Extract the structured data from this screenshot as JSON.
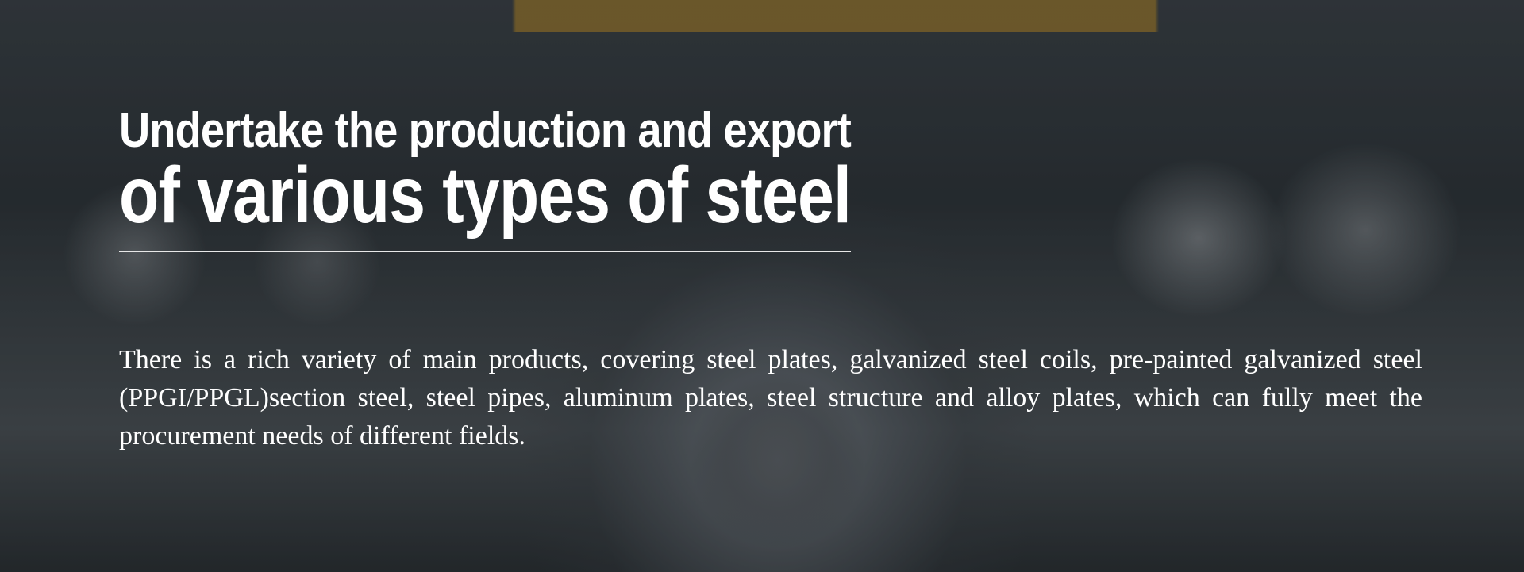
{
  "banner": {
    "title_line1": "Undertake the production and export",
    "title_line2": "of various types of steel",
    "description": "There is a rich variety of main products, covering steel plates, galvanized steel coils, pre-painted galvanized steel (PPGI/PPGL)section steel, steel pipes, aluminum plates, steel structure and alloy plates, which can fully meet the procurement needs of different fields.",
    "text_color": "#ffffff"
  }
}
